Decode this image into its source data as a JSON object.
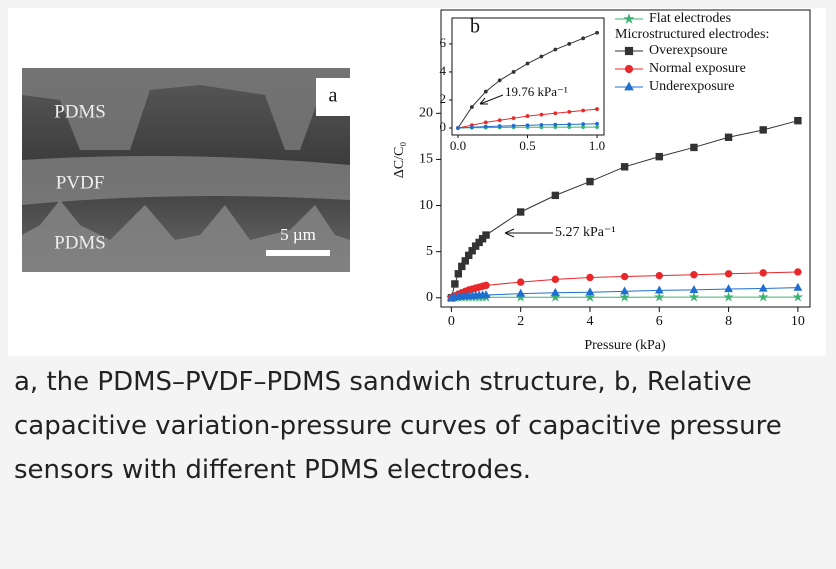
{
  "image_panel": {
    "label": "a",
    "texts": [
      "PDMS",
      "PVDF",
      "PDMS"
    ],
    "scale_bar": "5 µm"
  },
  "chart_data": {
    "type": "line",
    "label": "b",
    "xlabel": "Pressure (kPa)",
    "ylabel": "ΔC/C₀",
    "x": [
      0,
      0.1,
      0.2,
      0.3,
      0.4,
      0.5,
      0.6,
      0.7,
      0.8,
      0.9,
      1,
      2,
      3,
      4,
      5,
      6,
      7,
      8,
      9,
      10
    ],
    "xlim": [
      -0.3,
      10.35
    ],
    "xticks": [
      0,
      2,
      4,
      6,
      8,
      10
    ],
    "ylim": [
      -1,
      31.2
    ],
    "yticks": [
      0,
      5,
      10,
      15,
      20
    ],
    "legend_heading": "Microstructured electrodes:",
    "series": [
      {
        "name": "Flat electrodes",
        "color": "#3cb371",
        "marker": "star",
        "values": [
          0,
          0.02,
          0.03,
          0.04,
          0.05,
          0.05,
          0.05,
          0.06,
          0.06,
          0.06,
          0.06,
          0.06,
          0.06,
          0.06,
          0.06,
          0.07,
          0.07,
          0.07,
          0.07,
          0.07
        ]
      },
      {
        "name": "Overexpsoure",
        "color": "#333333",
        "marker": "square",
        "values": [
          0,
          1.5,
          2.6,
          3.4,
          4.0,
          4.6,
          5.1,
          5.6,
          6.0,
          6.4,
          6.8,
          9.3,
          11.1,
          12.6,
          14.2,
          15.3,
          16.3,
          17.4,
          18.2,
          19.2
        ]
      },
      {
        "name": "Normal exposure",
        "color": "#e8282a",
        "marker": "circle",
        "values": [
          0,
          0.2,
          0.4,
          0.55,
          0.7,
          0.85,
          0.95,
          1.05,
          1.15,
          1.25,
          1.35,
          1.7,
          2.0,
          2.2,
          2.3,
          2.4,
          2.5,
          2.6,
          2.7,
          2.8
        ]
      },
      {
        "name": "Underexposure",
        "color": "#1f6fd1",
        "marker": "triangle",
        "values": [
          0,
          0.05,
          0.1,
          0.13,
          0.16,
          0.19,
          0.22,
          0.24,
          0.26,
          0.28,
          0.3,
          0.45,
          0.55,
          0.6,
          0.7,
          0.8,
          0.85,
          0.95,
          1.0,
          1.1
        ]
      }
    ],
    "annotation": "5.27 kPa⁻¹",
    "inset": {
      "xlim": [
        -0.043,
        1.05
      ],
      "ylim": [
        -0.5,
        7.85
      ],
      "xticks": [
        {
          "value": 0,
          "label": "0.0"
        },
        0.5,
        {
          "value": 1,
          "label": "1.0"
        }
      ],
      "yticks": [
        0,
        2,
        4,
        6
      ],
      "annotation": "19.76 kPa⁻¹"
    }
  },
  "caption": "a, the PDMS–PVDF–PDMS sandwich structure, b, Relative capacitive variation-pressure curves of capacitive pressure sensors with different PDMS electrodes."
}
